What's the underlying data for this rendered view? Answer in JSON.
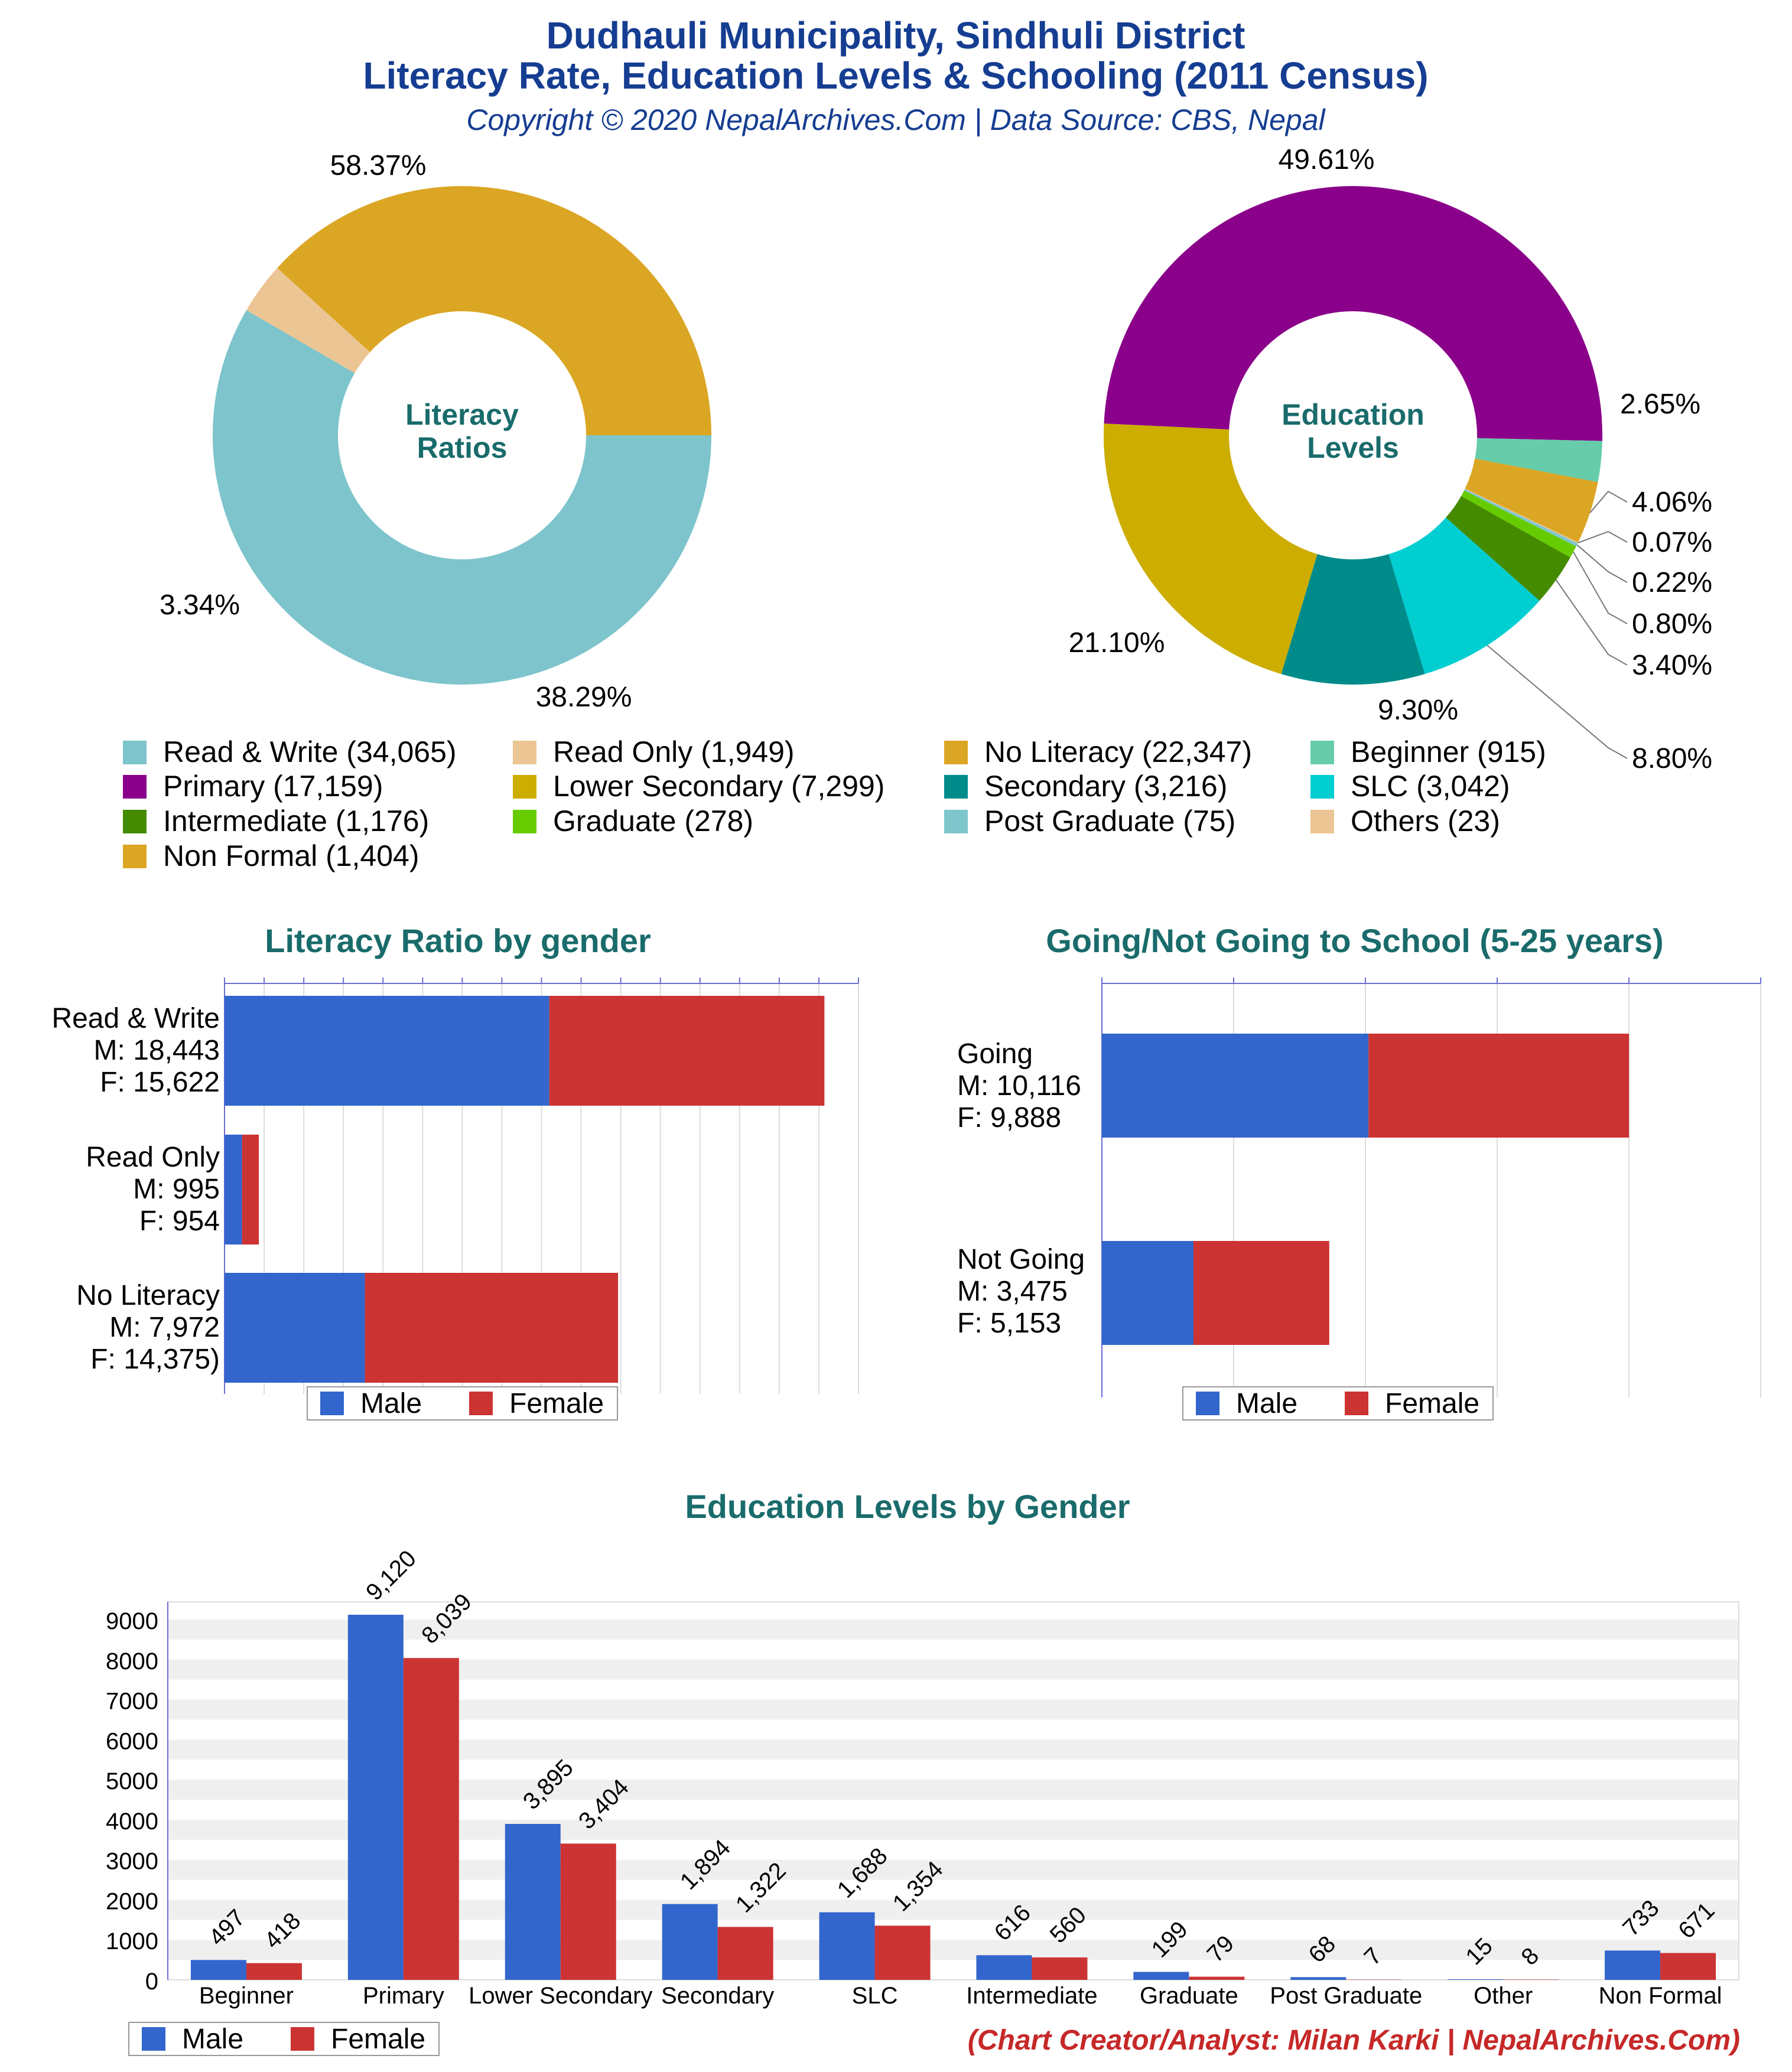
{
  "header": {
    "title_line1": "Dudhauli Municipality, Sindhuli District",
    "title_line2": "Literacy Rate, Education Levels & Schooling (2011 Census)",
    "copyright": "Copyright © 2020 NepalArchives.Com | Data Source: CBS, Nepal"
  },
  "colors": {
    "title": "#153d91",
    "section_title": "#1a6b6b",
    "male": "#3366cc",
    "female": "#cc3333",
    "read_write": "#7ec4cc",
    "read_only": "#ecc594",
    "no_literacy": "#dba624",
    "beginner": "#66ccaa",
    "primary": "#8b008b",
    "lower_secondary": "#ccad00",
    "secondary": "#008b8b",
    "slc": "#00ced1",
    "intermediate": "#458b00",
    "graduate": "#66cc00",
    "post_graduate": "#7fc5cc",
    "others": "#ecc594",
    "non_formal": "#dba624",
    "credit": "#c62828"
  },
  "legend": {
    "items": [
      {
        "label": "Read & Write (34,065)",
        "color": "#7ec4cc"
      },
      {
        "label": "Read Only (1,949)",
        "color": "#ecc594"
      },
      {
        "label": "No Literacy (22,347)",
        "color": "#dba624"
      },
      {
        "label": "Beginner (915)",
        "color": "#66ccaa"
      },
      {
        "label": "Primary (17,159)",
        "color": "#8b008b"
      },
      {
        "label": "Lower Secondary (7,299)",
        "color": "#ccad00"
      },
      {
        "label": "Secondary (3,216)",
        "color": "#008b8b"
      },
      {
        "label": "SLC (3,042)",
        "color": "#00ced1"
      },
      {
        "label": "Intermediate (1,176)",
        "color": "#458b00"
      },
      {
        "label": "Graduate (278)",
        "color": "#66cc00"
      },
      {
        "label": "Post Graduate (75)",
        "color": "#7fc5cc"
      },
      {
        "label": "Others (23)",
        "color": "#ecc594"
      },
      {
        "label": "Non Formal (1,404)",
        "color": "#dba624"
      }
    ]
  },
  "credit": "(Chart Creator/Analyst: Milan Karki | NepalArchives.Com)",
  "chart_data": [
    {
      "type": "pie",
      "title": "Literacy Ratios",
      "center_label_lines": [
        "Literacy",
        "Ratios"
      ],
      "labels": [
        "Read & Write",
        "Read Only",
        "No Literacy"
      ],
      "values": [
        34065,
        1949,
        22347
      ],
      "percent_labels": [
        "58.37%",
        "3.34%",
        "38.29%"
      ],
      "colors": [
        "#7ec4cc",
        "#ecc594",
        "#dba624"
      ]
    },
    {
      "type": "pie",
      "title": "Education Levels",
      "center_label_lines": [
        "Education",
        "Levels"
      ],
      "labels": [
        "Primary",
        "Beginner",
        "Non Formal",
        "Others",
        "Post Graduate",
        "Graduate",
        "Intermediate",
        "SLC",
        "Secondary",
        "Lower Secondary"
      ],
      "values": [
        17159,
        915,
        1404,
        23,
        75,
        278,
        1176,
        3042,
        3216,
        7299
      ],
      "percent_labels": [
        "49.61%",
        "2.65%",
        "4.06%",
        "0.07%",
        "0.22%",
        "0.80%",
        "3.40%",
        "8.80%",
        "9.30%",
        "21.10%"
      ],
      "colors": [
        "#8b008b",
        "#66ccaa",
        "#dba624",
        "#ecc594",
        "#7fc5cc",
        "#66cc00",
        "#458b00",
        "#00ced1",
        "#008b8b",
        "#ccad00"
      ]
    },
    {
      "type": "bar",
      "orientation": "horizontal-stacked",
      "title": "Literacy Ratio by gender",
      "categories": [
        {
          "lines": [
            "Read & Write",
            "M: 18,443",
            "F: 15,622"
          ]
        },
        {
          "lines": [
            "Read Only",
            "M: 995",
            "F: 954"
          ]
        },
        {
          "lines": [
            "No Literacy",
            "M: 7,972",
            "F: 14,375)"
          ]
        }
      ],
      "series": [
        {
          "name": "Male",
          "values": [
            18443,
            995,
            7972
          ],
          "color": "#3366cc"
        },
        {
          "name": "Female",
          "values": [
            15622,
            954,
            14375
          ],
          "color": "#cc3333"
        }
      ],
      "xlim": [
        0,
        36000
      ],
      "grid": true,
      "legend": "bottom"
    },
    {
      "type": "bar",
      "orientation": "horizontal-stacked",
      "title": "Going/Not Going to School (5-25 years)",
      "categories": [
        {
          "lines": [
            "Going",
            "M: 10,116",
            "F: 9,888"
          ]
        },
        {
          "lines": [
            "Not Going",
            "M: 3,475",
            "F: 5,153"
          ]
        }
      ],
      "series": [
        {
          "name": "Male",
          "values": [
            10116,
            3475
          ],
          "color": "#3366cc"
        },
        {
          "name": "Female",
          "values": [
            9888,
            5153
          ],
          "color": "#cc3333"
        }
      ],
      "xlim": [
        0,
        25000
      ],
      "grid": true,
      "legend": "bottom"
    },
    {
      "type": "bar",
      "title": "Education Levels by Gender",
      "categories": [
        "Beginner",
        "Primary",
        "Lower Secondary",
        "Secondary",
        "SLC",
        "Intermediate",
        "Graduate",
        "Post Graduate",
        "Other",
        "Non Formal"
      ],
      "series": [
        {
          "name": "Male",
          "values": [
            497,
            9120,
            3895,
            1894,
            1688,
            616,
            199,
            68,
            15,
            733
          ],
          "value_labels": [
            "497",
            "9,120",
            "3,895",
            "1,894",
            "1,688",
            "616",
            "199",
            "68",
            "15",
            "733"
          ],
          "color": "#3366cc"
        },
        {
          "name": "Female",
          "values": [
            418,
            8039,
            3404,
            1322,
            1354,
            560,
            79,
            7,
            8,
            671
          ],
          "value_labels": [
            "418",
            "8,039",
            "3,404",
            "1,322",
            "1,354",
            "560",
            "79",
            "7",
            "8",
            "671"
          ],
          "color": "#cc3333"
        }
      ],
      "ylim": [
        0,
        9000
      ],
      "yticks": [
        "0",
        "1000",
        "2000",
        "3000",
        "4000",
        "5000",
        "6000",
        "7000",
        "8000",
        "9000"
      ],
      "grid": true,
      "legend": "bottom-left"
    }
  ]
}
